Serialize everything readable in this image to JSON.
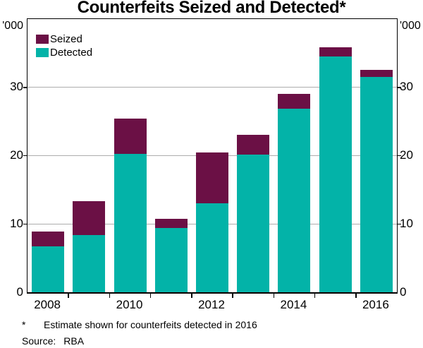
{
  "title": "Counterfeits Seized and Detected*",
  "axis_units": {
    "left": "'000",
    "right": "'000"
  },
  "legend": [
    {
      "label": "Seized",
      "color": "#6B1045"
    },
    {
      "label": "Detected",
      "color": "#03B3A8"
    }
  ],
  "footnote": {
    "marker": "*",
    "text": "Estimate shown for counterfeits detected in 2016"
  },
  "source": {
    "label": "Source:",
    "value": "RBA"
  },
  "chart_data": {
    "type": "bar",
    "stacked": true,
    "title": "Counterfeits Seized and Detected*",
    "unit": "'000",
    "categories": [
      "2008",
      "2009",
      "2010",
      "2011",
      "2012",
      "2013",
      "2014",
      "2015",
      "2016"
    ],
    "series": [
      {
        "name": "Detected",
        "color": "#03B3A8",
        "values": [
          6.7,
          8.4,
          20.3,
          9.4,
          13.0,
          20.2,
          26.9,
          34.5,
          31.5
        ]
      },
      {
        "name": "Seized",
        "color": "#6B1045",
        "values": [
          2.2,
          4.9,
          5.1,
          1.4,
          7.5,
          2.9,
          2.1,
          1.4,
          1.1
        ]
      }
    ],
    "stack_order_bottom_to_top": [
      "Detected",
      "Seized"
    ],
    "totals": [
      8.9,
      13.3,
      25.4,
      10.8,
      20.5,
      23.1,
      29.0,
      35.9,
      32.6
    ],
    "ylim": [
      0,
      40
    ],
    "yticks": [
      0,
      10,
      20,
      30
    ],
    "gridlines": [
      10,
      20,
      30
    ],
    "gridline_color": "#adadad",
    "x_axis_labels": [
      "2008",
      "2010",
      "2012",
      "2014",
      "2016"
    ],
    "x_label_slots": [
      0,
      2,
      4,
      6,
      8
    ],
    "legend_position": "top-left",
    "legend_order": [
      "Seized",
      "Detected"
    ],
    "grid": true
  }
}
